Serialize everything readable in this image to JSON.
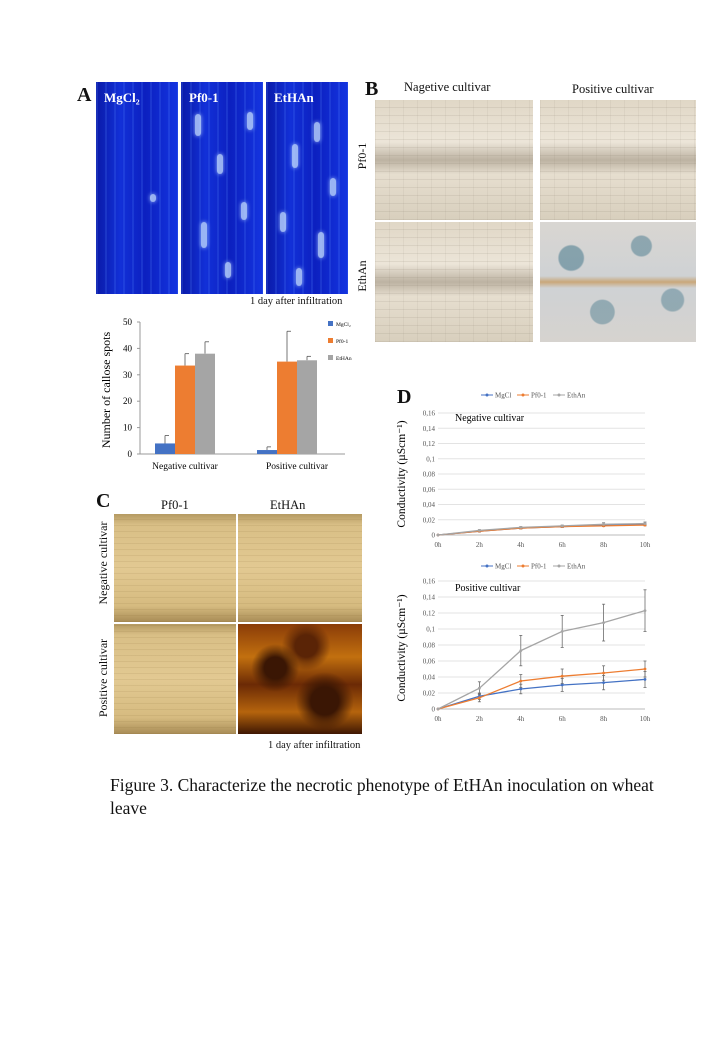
{
  "panels": {
    "A": {
      "letter": "A",
      "image_labels": [
        "MgCl₂",
        "Pf0-1",
        "EtHAn"
      ],
      "image_note": "1 day after infiltration"
    },
    "B": {
      "letter": "B",
      "col_labels": [
        "Nagetive cultivar",
        "Positive cultivar"
      ],
      "row_labels": [
        "Pf0-1",
        "EthAn"
      ]
    },
    "C": {
      "letter": "C",
      "col_labels": [
        "Pf0-1",
        "EtHAn"
      ],
      "row_labels": [
        "Negative cultivar",
        "Positive cultivar"
      ],
      "image_note": "1 day after infiltration"
    },
    "D": {
      "letter": "D"
    }
  },
  "chart_data": [
    {
      "type": "bar",
      "categories": [
        "Negative cultivar",
        "Positive cultivar"
      ],
      "series": [
        {
          "name": "MgCl₂",
          "color": "#4472c4",
          "values": [
            4,
            1.5
          ],
          "errors": [
            3,
            1.2
          ]
        },
        {
          "name": "Pf0-1",
          "color": "#ed7d31",
          "values": [
            33.5,
            35
          ],
          "errors": [
            4.5,
            11.5
          ]
        },
        {
          "name": "EtHAn",
          "color": "#a5a5a5",
          "values": [
            38,
            35.5
          ],
          "errors": [
            4.5,
            1.5
          ]
        }
      ],
      "ylabel": "Number of callose spots",
      "ylim": [
        0,
        50
      ],
      "yticks": [
        "0",
        "10",
        "20",
        "30",
        "40",
        "50"
      ],
      "legend": "right"
    },
    {
      "type": "line",
      "title": "Negative cultivar",
      "x": [
        "0h",
        "2h",
        "4h",
        "6h",
        "8h",
        "10h"
      ],
      "series": [
        {
          "name": "MgCl",
          "color": "#4472c4",
          "values": [
            0,
            0.005,
            0.009,
            0.011,
            0.013,
            0.014
          ],
          "errors": [
            0,
            0.001,
            0.001,
            0.001,
            0.001,
            0.001
          ]
        },
        {
          "name": "Pf0-1",
          "color": "#ed7d31",
          "values": [
            0,
            0.005,
            0.009,
            0.011,
            0.012,
            0.013
          ],
          "errors": [
            0,
            0.001,
            0.001,
            0.001,
            0.001,
            0.001
          ]
        },
        {
          "name": "EthAn",
          "color": "#a5a5a5",
          "values": [
            0,
            0.006,
            0.01,
            0.012,
            0.014,
            0.015
          ],
          "errors": [
            0,
            0.001,
            0.001,
            0.001,
            0.002,
            0.002
          ]
        }
      ],
      "ylabel": "Conductivity (µScm⁻¹)",
      "ylim": [
        0,
        0.16
      ],
      "yticks": [
        "0",
        "0,02",
        "0,04",
        "0,06",
        "0,08",
        "0,1",
        "0,12",
        "0,14",
        "0,16"
      ],
      "legend": "top",
      "grid": true
    },
    {
      "type": "line",
      "title": "Positive cultivar",
      "x": [
        "0h",
        "2h",
        "4h",
        "6h",
        "8h",
        "10h"
      ],
      "series": [
        {
          "name": "MgCl",
          "color": "#4472c4",
          "values": [
            0,
            0.016,
            0.025,
            0.03,
            0.033,
            0.037
          ],
          "errors": [
            0,
            0.004,
            0.006,
            0.008,
            0.009,
            0.01
          ]
        },
        {
          "name": "Pf0-1",
          "color": "#ed7d31",
          "values": [
            0,
            0.014,
            0.035,
            0.041,
            0.045,
            0.05
          ],
          "errors": [
            0,
            0.005,
            0.008,
            0.009,
            0.009,
            0.01
          ]
        },
        {
          "name": "EthAn",
          "color": "#a5a5a5",
          "values": [
            0,
            0.026,
            0.073,
            0.097,
            0.108,
            0.123
          ],
          "errors": [
            0,
            0.008,
            0.019,
            0.02,
            0.023,
            0.026
          ]
        }
      ],
      "ylabel": "Conductivity (µScm⁻¹)",
      "ylim": [
        0,
        0.16
      ],
      "yticks": [
        "0",
        "0,02",
        "0,04",
        "0,06",
        "0,08",
        "0,1",
        "0,12",
        "0,14",
        "0,16"
      ],
      "legend": "top",
      "grid": true
    }
  ],
  "caption": "Figure 3. Characterize the necrotic phenotype of EtHAn inoculation on wheat leave"
}
